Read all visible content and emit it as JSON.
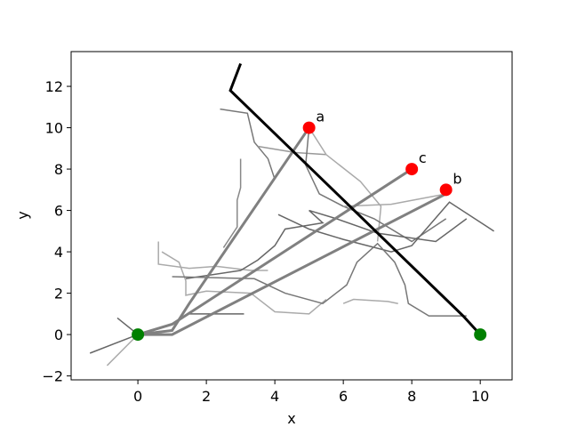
{
  "chart_data": {
    "type": "line",
    "xlabel": "x",
    "ylabel": "y",
    "xlim": [
      -1.95,
      10.93
    ],
    "ylim": [
      -2.19,
      13.68
    ],
    "xticks": [
      0,
      2,
      4,
      6,
      8,
      10
    ],
    "yticks": [
      {
        "value": -2,
        "label": "−2"
      },
      0,
      2,
      4,
      6,
      8,
      10,
      12
    ],
    "series": [
      {
        "color": "#777777",
        "width": 1.5,
        "x": [
          2.4,
          3.2,
          3.4,
          3.8,
          4.0
        ],
        "y": [
          10.9,
          10.7,
          9.3,
          8.5,
          7.5
        ]
      },
      {
        "color": "#999999",
        "width": 1.5,
        "x": [
          3.5,
          4.6,
          5.5
        ],
        "y": [
          9.1,
          8.8,
          8.7
        ]
      },
      {
        "color": "#aaaaaa",
        "width": 1.5,
        "x": [
          5,
          5.5,
          6.5,
          7.1,
          7.0
        ],
        "y": [
          10,
          8.7,
          7.4,
          6.2,
          4.5
        ]
      },
      {
        "color": "#777777",
        "width": 1.5,
        "x": [
          5,
          4.9,
          5.3,
          6,
          6.9,
          8,
          9
        ],
        "y": [
          10,
          8.2,
          6.8,
          6.2,
          5.6,
          4.5,
          5.6
        ]
      },
      {
        "color": "#888888",
        "width": 1.5,
        "x": [
          3,
          3,
          2.9,
          2.9,
          2.5
        ],
        "y": [
          8.5,
          7.1,
          6.5,
          5.2,
          4.2
        ]
      },
      {
        "color": "#aaaaaa",
        "width": 1.5,
        "x": [
          0.6,
          0.6,
          1.5,
          2.3,
          3.3,
          3.8
        ],
        "y": [
          4.5,
          3.4,
          3.2,
          3.3,
          3.1,
          3.1
        ]
      },
      {
        "color": "#aaaaaa",
        "width": 1.5,
        "x": [
          0.7,
          1.2,
          1.4,
          1.4,
          2,
          3.3,
          4,
          5,
          5.5
        ],
        "y": [
          4,
          3.5,
          2.6,
          1.9,
          2.1,
          2,
          1.1,
          1,
          1.7
        ]
      },
      {
        "color": "#666666",
        "width": 1.5,
        "x": [
          1.4,
          3,
          3.5,
          4,
          4.3,
          5.4,
          5,
          5.8,
          7,
          8.7,
          9.6
        ],
        "y": [
          2.7,
          3.1,
          3.6,
          4.3,
          5.1,
          5.4,
          6,
          5.6,
          4.9,
          4.5,
          5.6
        ]
      },
      {
        "color": "#666666",
        "width": 1.5,
        "x": [
          4.1,
          5,
          6,
          7.4,
          8,
          9.1,
          10.4
        ],
        "y": [
          5.8,
          5.1,
          4.6,
          4,
          4.3,
          6.4,
          5
        ]
      },
      {
        "color": "#777777",
        "width": 1.5,
        "x": [
          1,
          3.4,
          4.3,
          5.4,
          6.1,
          6.4,
          7,
          7.5,
          7.8,
          7.9,
          8.5,
          9.6
        ],
        "y": [
          2.8,
          2.7,
          2,
          1.5,
          2.4,
          3.5,
          4.4,
          3.5,
          2.4,
          1.5,
          0.9,
          0.9
        ]
      },
      {
        "color": "#666666",
        "width": 1.5,
        "x": [
          1.5,
          3.1
        ],
        "y": [
          1,
          1
        ]
      },
      {
        "color": "#aaaaaa",
        "width": 1.5,
        "x": [
          6,
          6.3,
          7.3,
          7.6
        ],
        "y": [
          1.5,
          1.7,
          1.6,
          1.5
        ]
      },
      {
        "color": "#aaaaaa",
        "width": 1.5,
        "x": [
          6,
          7.4,
          9
        ],
        "y": [
          6.2,
          6.3,
          6.8
        ]
      },
      {
        "color": "#666666",
        "width": 1.5,
        "x": [
          -0.6,
          0,
          -1.4
        ],
        "y": [
          0.8,
          0,
          -0.9
        ]
      },
      {
        "color": "#aaaaaa",
        "width": 1.5,
        "x": [
          -0.9,
          0
        ],
        "y": [
          -1.5,
          0
        ]
      },
      {
        "color": "#808080",
        "width": 3,
        "x": [
          0,
          1,
          1.5,
          5
        ],
        "y": [
          0,
          0.2,
          1.5,
          10
        ]
      },
      {
        "color": "#808080",
        "width": 3,
        "x": [
          0,
          1,
          8
        ],
        "y": [
          0,
          0.5,
          8
        ]
      },
      {
        "color": "#808080",
        "width": 3,
        "x": [
          0,
          1,
          9
        ],
        "y": [
          0,
          0,
          6.8
        ]
      },
      {
        "color": "#000000",
        "width": 3,
        "x": [
          3,
          2.7,
          9.5,
          10
        ],
        "y": [
          13.1,
          11.8,
          0.9,
          0
        ]
      }
    ],
    "points": {
      "x": [
        0,
        10,
        5,
        9,
        8
      ],
      "y": [
        0,
        0,
        10,
        7,
        8
      ],
      "colors": [
        "#008000",
        "#008000",
        "#ff0000",
        "#ff0000",
        "#ff0000"
      ]
    },
    "annotations": [
      {
        "text": "a",
        "x": 5.2,
        "y": 10.3
      },
      {
        "text": "b",
        "x": 9.2,
        "y": 7.3
      },
      {
        "text": "c",
        "x": 8.2,
        "y": 8.3
      }
    ]
  }
}
